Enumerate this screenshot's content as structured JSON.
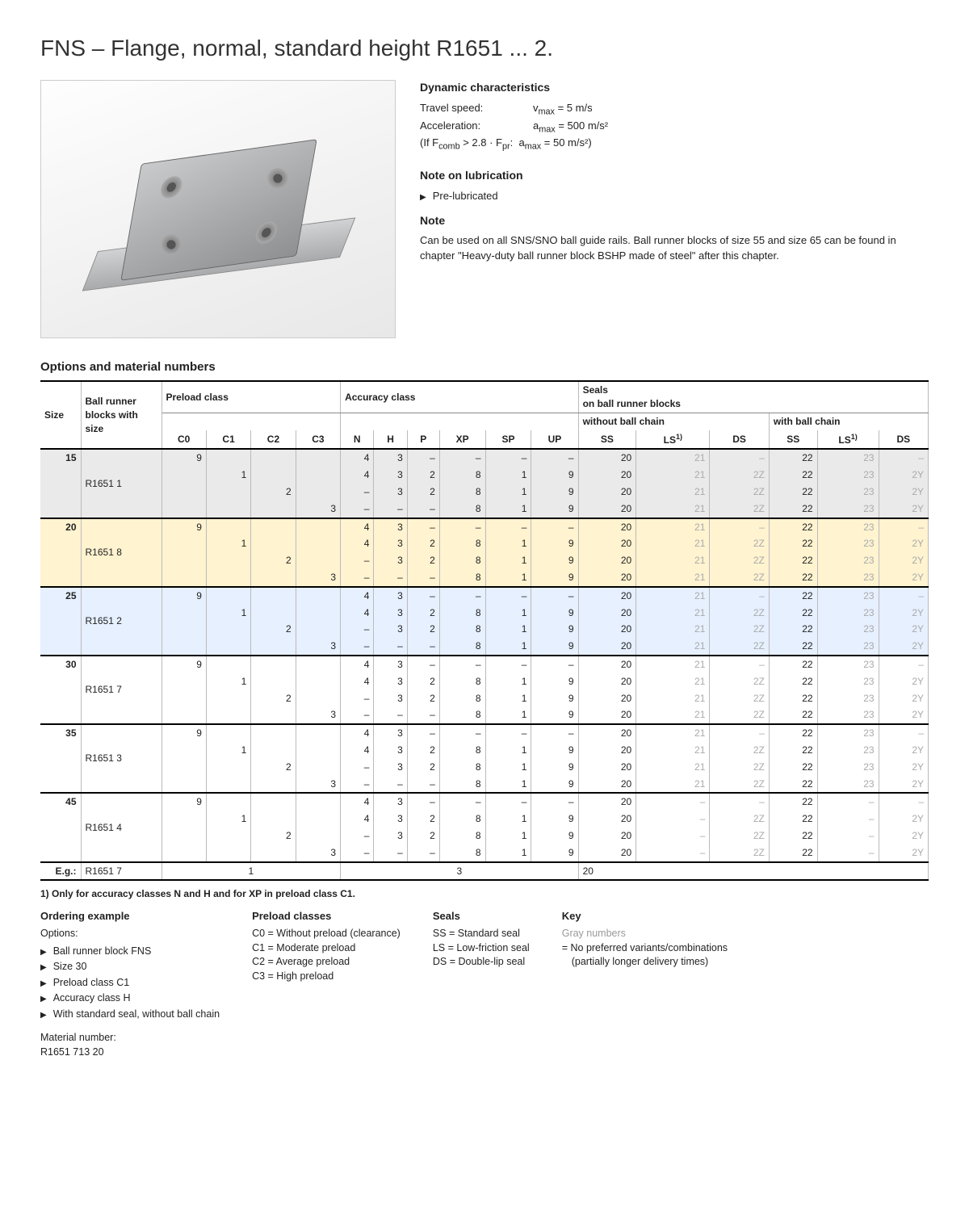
{
  "title": "FNS – Flange, normal, standard height R1651 ... 2.",
  "dyn": {
    "heading": "Dynamic characteristics",
    "rows": [
      {
        "k": "Travel speed:",
        "v": "v",
        "sub": "max",
        "rhs": " = 5 m/s"
      },
      {
        "k": "Acceleration:",
        "v": "a",
        "sub": "max",
        "rhs": " = 500 m/s²"
      }
    ],
    "cond": "(If F_comb > 2.8 · F_pr:  a_max = 50 m/s²)"
  },
  "lub": {
    "heading": "Note on lubrication",
    "items": [
      "Pre-lubricated"
    ]
  },
  "note": {
    "heading": "Note",
    "text": "Can be used on all SNS/SNO ball guide rails. Ball runner blocks of size 55 and size 65 can be found in chapter \"Heavy-duty ball runner block BSHP made of steel\" after this chapter."
  },
  "table": {
    "heading": "Options and material numbers",
    "head": {
      "size": "Size",
      "brb": "Ball runner blocks with size",
      "preload": "Preload class",
      "accuracy": "Accuracy class",
      "seals": "Seals",
      "seals2": "on ball runner blocks",
      "wo": "without ball chain",
      "wb": "with ball chain",
      "cols_pre": [
        "C0",
        "C1",
        "C2",
        "C3"
      ],
      "cols_acc": [
        "N",
        "H",
        "P",
        "XP",
        "SP",
        "UP"
      ],
      "cols_seal": [
        "SS",
        "LS",
        "DS",
        "SS",
        "LS",
        "DS"
      ],
      "fn": "1)"
    },
    "groups": [
      {
        "size": "15",
        "code": "R1651 1",
        "band": "g",
        "rows": [
          {
            "pre": [
              "9",
              "",
              "",
              ""
            ],
            "acc": [
              "4",
              "3",
              "–",
              "–",
              "–",
              "–"
            ],
            "seal": [
              "20",
              "21",
              "–",
              "22",
              "23",
              "–"
            ],
            "g": [
              0,
              0,
              0,
              0,
              0,
              0,
              0,
              1,
              1,
              0,
              1,
              1
            ]
          },
          {
            "pre": [
              "",
              "1",
              "",
              ""
            ],
            "acc": [
              "4",
              "3",
              "2",
              "8",
              "1",
              "9"
            ],
            "seal": [
              "20",
              "21",
              "2Z",
              "22",
              "23",
              "2Y"
            ],
            "g": [
              0,
              0,
              0,
              0,
              0,
              0,
              0,
              1,
              1,
              0,
              1,
              1
            ]
          },
          {
            "pre": [
              "",
              "",
              "2",
              ""
            ],
            "acc": [
              "–",
              "3",
              "2",
              "8",
              "1",
              "9"
            ],
            "seal": [
              "20",
              "21",
              "2Z",
              "22",
              "23",
              "2Y"
            ],
            "g": [
              0,
              0,
              0,
              0,
              0,
              0,
              0,
              1,
              1,
              0,
              1,
              1
            ]
          },
          {
            "pre": [
              "",
              "",
              "",
              "3"
            ],
            "acc": [
              "–",
              "–",
              "–",
              "8",
              "1",
              "9"
            ],
            "seal": [
              "20",
              "21",
              "2Z",
              "22",
              "23",
              "2Y"
            ],
            "g": [
              0,
              0,
              0,
              0,
              0,
              0,
              0,
              1,
              1,
              0,
              1,
              1
            ]
          }
        ]
      },
      {
        "size": "20",
        "code": "R1651 8",
        "band": "y",
        "rows": [
          {
            "pre": [
              "9",
              "",
              "",
              ""
            ],
            "acc": [
              "4",
              "3",
              "–",
              "–",
              "–",
              "–"
            ],
            "seal": [
              "20",
              "21",
              "–",
              "22",
              "23",
              "–"
            ],
            "g": [
              0,
              0,
              0,
              0,
              0,
              0,
              0,
              1,
              1,
              0,
              1,
              1
            ]
          },
          {
            "pre": [
              "",
              "1",
              "",
              ""
            ],
            "acc": [
              "4",
              "3",
              "2",
              "8",
              "1",
              "9"
            ],
            "seal": [
              "20",
              "21",
              "2Z",
              "22",
              "23",
              "2Y"
            ],
            "g": [
              0,
              0,
              0,
              1,
              1,
              0,
              0,
              1,
              1,
              0,
              1,
              1
            ]
          },
          {
            "pre": [
              "",
              "",
              "2",
              ""
            ],
            "acc": [
              "–",
              "3",
              "2",
              "8",
              "1",
              "9"
            ],
            "seal": [
              "20",
              "21",
              "2Z",
              "22",
              "23",
              "2Y"
            ],
            "g": [
              0,
              0,
              0,
              1,
              1,
              0,
              0,
              1,
              1,
              0,
              1,
              1
            ]
          },
          {
            "pre": [
              "",
              "",
              "",
              "3"
            ],
            "acc": [
              "–",
              "–",
              "–",
              "8",
              "1",
              "9"
            ],
            "seal": [
              "20",
              "21",
              "2Z",
              "22",
              "23",
              "2Y"
            ],
            "g": [
              0,
              0,
              0,
              0,
              0,
              0,
              0,
              1,
              1,
              0,
              1,
              1
            ]
          }
        ]
      },
      {
        "size": "25",
        "code": "R1651 2",
        "band": "b",
        "rows": [
          {
            "pre": [
              "9",
              "",
              "",
              ""
            ],
            "acc": [
              "4",
              "3",
              "–",
              "–",
              "–",
              "–"
            ],
            "seal": [
              "20",
              "21",
              "–",
              "22",
              "23",
              "–"
            ],
            "g": [
              0,
              0,
              0,
              0,
              0,
              0,
              0,
              1,
              1,
              0,
              1,
              1
            ]
          },
          {
            "pre": [
              "",
              "1",
              "",
              ""
            ],
            "acc": [
              "4",
              "3",
              "2",
              "8",
              "1",
              "9"
            ],
            "seal": [
              "20",
              "21",
              "2Z",
              "22",
              "23",
              "2Y"
            ],
            "g": [
              0,
              0,
              0,
              0,
              0,
              0,
              0,
              1,
              1,
              0,
              1,
              1
            ]
          },
          {
            "pre": [
              "",
              "",
              "2",
              ""
            ],
            "acc": [
              "–",
              "3",
              "2",
              "8",
              "1",
              "9"
            ],
            "seal": [
              "20",
              "21",
              "2Z",
              "22",
              "23",
              "2Y"
            ],
            "g": [
              0,
              0,
              0,
              0,
              0,
              0,
              0,
              1,
              1,
              0,
              1,
              1
            ]
          },
          {
            "pre": [
              "",
              "",
              "",
              "3"
            ],
            "acc": [
              "–",
              "–",
              "–",
              "8",
              "1",
              "9"
            ],
            "seal": [
              "20",
              "21",
              "2Z",
              "22",
              "23",
              "2Y"
            ],
            "g": [
              0,
              0,
              0,
              0,
              0,
              0,
              0,
              1,
              1,
              0,
              1,
              1
            ]
          }
        ]
      },
      {
        "size": "30",
        "code": "R1651 7",
        "band": "",
        "rows": [
          {
            "pre": [
              "9",
              "",
              "",
              ""
            ],
            "acc": [
              "4",
              "3",
              "–",
              "–",
              "–",
              "–"
            ],
            "seal": [
              "20",
              "21",
              "–",
              "22",
              "23",
              "–"
            ],
            "g": [
              0,
              0,
              0,
              0,
              0,
              0,
              0,
              1,
              1,
              0,
              1,
              1
            ]
          },
          {
            "pre": [
              "",
              "1",
              "",
              ""
            ],
            "acc": [
              "4",
              "3",
              "2",
              "8",
              "1",
              "9"
            ],
            "seal": [
              "20",
              "21",
              "2Z",
              "22",
              "23",
              "2Y"
            ],
            "g": [
              0,
              0,
              0,
              0,
              0,
              0,
              0,
              1,
              1,
              0,
              1,
              1
            ]
          },
          {
            "pre": [
              "",
              "",
              "2",
              ""
            ],
            "acc": [
              "–",
              "3",
              "2",
              "8",
              "1",
              "9"
            ],
            "seal": [
              "20",
              "21",
              "2Z",
              "22",
              "23",
              "2Y"
            ],
            "g": [
              0,
              0,
              0,
              0,
              0,
              0,
              0,
              1,
              1,
              0,
              1,
              1
            ]
          },
          {
            "pre": [
              "",
              "",
              "",
              "3"
            ],
            "acc": [
              "–",
              "–",
              "–",
              "8",
              "1",
              "9"
            ],
            "seal": [
              "20",
              "21",
              "2Z",
              "22",
              "23",
              "2Y"
            ],
            "g": [
              0,
              0,
              0,
              0,
              0,
              0,
              0,
              1,
              1,
              0,
              1,
              1
            ]
          }
        ]
      },
      {
        "size": "35",
        "code": "R1651 3",
        "band": "",
        "rows": [
          {
            "pre": [
              "9",
              "",
              "",
              ""
            ],
            "acc": [
              "4",
              "3",
              "–",
              "–",
              "–",
              "–"
            ],
            "seal": [
              "20",
              "21",
              "–",
              "22",
              "23",
              "–"
            ],
            "g": [
              0,
              0,
              0,
              0,
              0,
              0,
              0,
              1,
              1,
              0,
              1,
              1
            ]
          },
          {
            "pre": [
              "",
              "1",
              "",
              ""
            ],
            "acc": [
              "4",
              "3",
              "2",
              "8",
              "1",
              "9"
            ],
            "seal": [
              "20",
              "21",
              "2Z",
              "22",
              "23",
              "2Y"
            ],
            "g": [
              0,
              0,
              0,
              0,
              0,
              0,
              0,
              1,
              1,
              0,
              1,
              1
            ]
          },
          {
            "pre": [
              "",
              "",
              "2",
              ""
            ],
            "acc": [
              "–",
              "3",
              "2",
              "8",
              "1",
              "9"
            ],
            "seal": [
              "20",
              "21",
              "2Z",
              "22",
              "23",
              "2Y"
            ],
            "g": [
              0,
              0,
              0,
              0,
              0,
              0,
              0,
              1,
              1,
              0,
              1,
              1
            ]
          },
          {
            "pre": [
              "",
              "",
              "",
              "3"
            ],
            "acc": [
              "–",
              "–",
              "–",
              "8",
              "1",
              "9"
            ],
            "seal": [
              "20",
              "21",
              "2Z",
              "22",
              "23",
              "2Y"
            ],
            "g": [
              0,
              0,
              0,
              0,
              0,
              0,
              0,
              1,
              1,
              0,
              1,
              1
            ]
          }
        ]
      },
      {
        "size": "45",
        "code": "R1651 4",
        "band": "",
        "rows": [
          {
            "pre": [
              "9",
              "",
              "",
              ""
            ],
            "acc": [
              "4",
              "3",
              "–",
              "–",
              "–",
              "–"
            ],
            "seal": [
              "20",
              "–",
              "–",
              "22",
              "–",
              "–"
            ],
            "g": [
              0,
              0,
              0,
              0,
              0,
              0,
              0,
              1,
              1,
              0,
              1,
              1
            ]
          },
          {
            "pre": [
              "",
              "1",
              "",
              ""
            ],
            "acc": [
              "4",
              "3",
              "2",
              "8",
              "1",
              "9"
            ],
            "seal": [
              "20",
              "–",
              "2Z",
              "22",
              "–",
              "2Y"
            ],
            "g": [
              0,
              0,
              0,
              0,
              0,
              0,
              0,
              1,
              1,
              0,
              1,
              1
            ]
          },
          {
            "pre": [
              "",
              "",
              "2",
              ""
            ],
            "acc": [
              "–",
              "3",
              "2",
              "8",
              "1",
              "9"
            ],
            "seal": [
              "20",
              "–",
              "2Z",
              "22",
              "–",
              "2Y"
            ],
            "g": [
              0,
              0,
              0,
              0,
              0,
              0,
              0,
              1,
              1,
              0,
              1,
              1
            ]
          },
          {
            "pre": [
              "",
              "",
              "",
              "3"
            ],
            "acc": [
              "–",
              "–",
              "–",
              "8",
              "1",
              "9"
            ],
            "seal": [
              "20",
              "–",
              "2Z",
              "22",
              "–",
              "2Y"
            ],
            "g": [
              0,
              0,
              0,
              0,
              0,
              0,
              0,
              1,
              1,
              0,
              1,
              1
            ]
          }
        ]
      }
    ],
    "eg": {
      "label": "E.g.:",
      "code": "R1651 7",
      "pre": "1",
      "acc": "3",
      "seal": "20"
    }
  },
  "footnote": "1)  Only for accuracy classes N and H and for XP in preload class C1.",
  "bottom": {
    "ordering": {
      "h": "Ordering example",
      "sub": "Options:",
      "items": [
        "Ball runner block FNS",
        "Size 30",
        "Preload class C1",
        "Accuracy class H",
        "With standard seal, without ball chain"
      ],
      "mat_l": "Material number:",
      "mat_v": "R1651 713 20"
    },
    "preload": {
      "h": "Preload classes",
      "lines": [
        "C0 = Without preload (clearance)",
        "C1 = Moderate preload",
        "C2 = Average preload",
        "C3 = High preload"
      ]
    },
    "seals": {
      "h": "Seals",
      "lines": [
        "SS = Standard seal",
        "LS = Low-friction seal",
        "DS = Double-lip seal"
      ]
    },
    "key": {
      "h": "Key",
      "sub": "Gray numbers",
      "text": "=  No preferred variants/combinations (partially longer delivery times)"
    }
  }
}
